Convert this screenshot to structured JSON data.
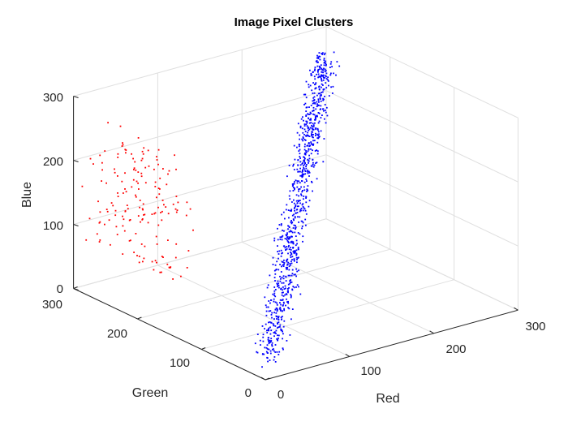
{
  "chart_data": {
    "type": "scatter3d",
    "title": "Image Pixel Clusters",
    "xlabel": "Red",
    "ylabel": "Green",
    "zlabel": "Blue",
    "xlim": [
      0,
      300
    ],
    "ylim": [
      0,
      300
    ],
    "zlim": [
      0,
      300
    ],
    "xticks": [
      0,
      100,
      200,
      300
    ],
    "yticks": [
      0,
      100,
      200,
      300
    ],
    "zticks": [
      0,
      100,
      200,
      300
    ],
    "xtick_labels": [
      "0",
      "100",
      "200",
      "300"
    ],
    "ytick_labels": [
      "0",
      "100",
      "200",
      "300"
    ],
    "ztick_labels": [
      "0",
      "100",
      "200",
      "300"
    ],
    "grid": true,
    "legend": "none",
    "series": [
      {
        "color": "#ff0000",
        "marker": "point",
        "cluster_summary": {
          "red_range": [
            5,
            40
          ],
          "green_range": [
            160,
            300
          ],
          "blue_range": [
            60,
            255
          ],
          "approx_points": 170
        }
      },
      {
        "color": "#0000ff",
        "marker": "point",
        "cluster_summary": {
          "red_range": [
            20,
            260
          ],
          "green_range": [
            20,
            250
          ],
          "blue_range": [
            15,
            290
          ],
          "trend": "red, green and blue increase together along a diagonal",
          "approx_points": 950
        }
      }
    ]
  }
}
